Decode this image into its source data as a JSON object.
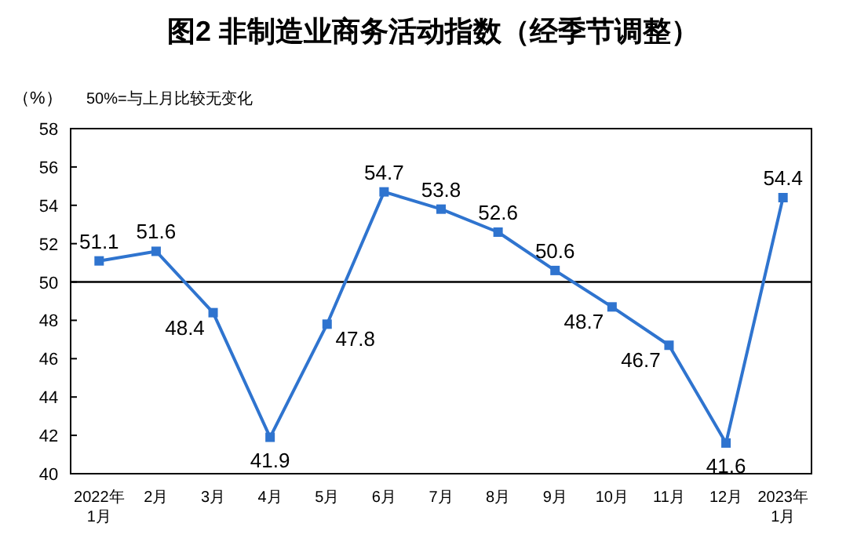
{
  "chart_data": {
    "type": "line",
    "title": "图2  非制造业商务活动指数（经季节调整）",
    "annotations": [
      "（%）",
      "50%=与上月比较无变化"
    ],
    "categories": [
      "2022年\n1月",
      "2月",
      "3月",
      "4月",
      "5月",
      "6月",
      "7月",
      "8月",
      "9月",
      "10月",
      "11月",
      "12月",
      "2023年\n1月"
    ],
    "series": [
      {
        "color": "#2f74cf",
        "values": [
          51.1,
          51.6,
          48.4,
          41.9,
          47.8,
          54.7,
          53.8,
          52.6,
          50.6,
          48.7,
          46.7,
          41.6,
          54.4
        ]
      }
    ],
    "ylim": [
      40,
      58
    ],
    "yticks": [
      40,
      42,
      44,
      46,
      48,
      50,
      52,
      54,
      56,
      58
    ],
    "ref_lines": [
      {
        "axis": "y",
        "value": 50,
        "label": null,
        "color": "#000000"
      }
    ],
    "data_labels": true,
    "marker": "square",
    "line_style": "solid"
  }
}
